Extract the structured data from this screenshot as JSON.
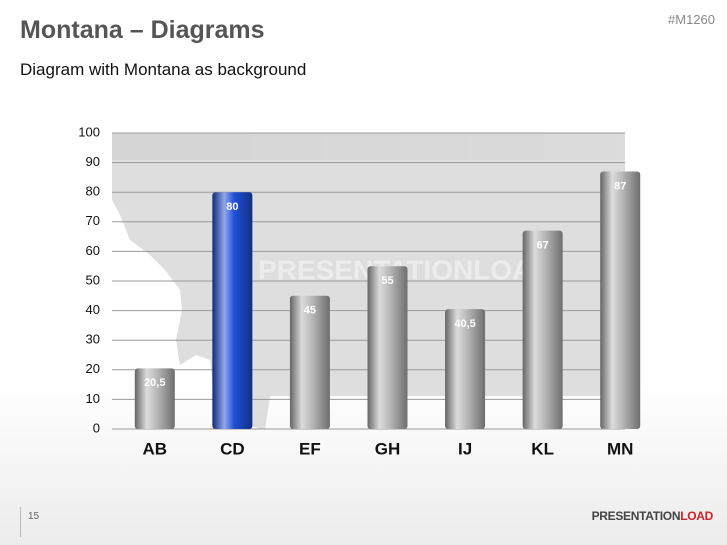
{
  "slide": {
    "title": "Montana – Diagrams",
    "code": "#M1260",
    "subtitle": "Diagram with Montana as background",
    "page_number": "15",
    "logo": [
      "PRESENTATION",
      "LOAD"
    ],
    "watermark": "PRESENTATIONLOAD"
  },
  "chart_data": {
    "type": "bar",
    "categories": [
      "AB",
      "CD",
      "EF",
      "GH",
      "IJ",
      "KL",
      "MN"
    ],
    "values": [
      20.5,
      80,
      45,
      55,
      40.5,
      67,
      87
    ],
    "value_labels": [
      "20,5",
      "80",
      "45",
      "55",
      "40,5",
      "67",
      "87"
    ],
    "colors": [
      "#b8b8b8",
      "#1f4fd8",
      "#b8b8b8",
      "#b8b8b8",
      "#b8b8b8",
      "#b8b8b8",
      "#b8b8b8"
    ],
    "ylim": [
      0,
      100
    ],
    "yticks": [
      0,
      10,
      20,
      30,
      40,
      50,
      60,
      70,
      80,
      90,
      100
    ],
    "grid": true
  }
}
